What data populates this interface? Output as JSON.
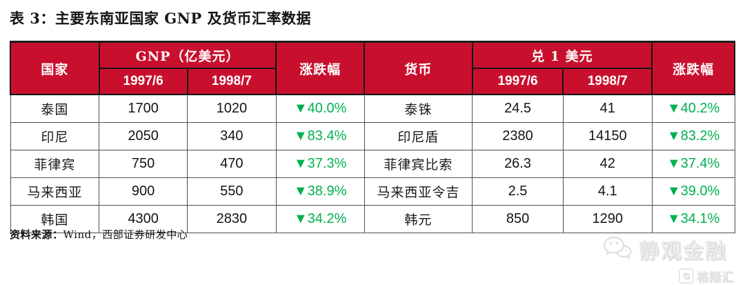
{
  "title": "表 3：主要东南亚国家 GNP 及货币汇率数据",
  "colors": {
    "header_red": "#c8102e",
    "change_green": "#00b050",
    "watermark_gray": "#e4e4e4"
  },
  "table": {
    "header": {
      "country": "国家",
      "gnp_group": "GNP（亿美元）",
      "change_left": "涨跌幅",
      "currency": "货币",
      "fx_group": "兑 1 美元",
      "change_right": "涨跌幅",
      "gnp_period1": "1997/6",
      "gnp_period2": "1998/7",
      "fx_period1": "1997/6",
      "fx_period2": "1998/7"
    },
    "rows": [
      {
        "country": "泰国",
        "gnp_1997": "1700",
        "gnp_1998": "1020",
        "gnp_change": "▼40.0%",
        "currency": "泰铢",
        "fx_1997": "24.5",
        "fx_1998": "41",
        "fx_change": "▼40.2%"
      },
      {
        "country": "印尼",
        "gnp_1997": "2050",
        "gnp_1998": "340",
        "gnp_change": "▼83.4%",
        "currency": "印尼盾",
        "fx_1997": "2380",
        "fx_1998": "14150",
        "fx_change": "▼83.2%"
      },
      {
        "country": "菲律宾",
        "gnp_1997": "750",
        "gnp_1998": "470",
        "gnp_change": "▼37.3%",
        "currency": "菲律宾比索",
        "fx_1997": "26.3",
        "fx_1998": "42",
        "fx_change": "▼37.4%"
      },
      {
        "country": "马来西亚",
        "gnp_1997": "900",
        "gnp_1998": "550",
        "gnp_change": "▼38.9%",
        "currency": "马来西亚令吉",
        "fx_1997": "2.5",
        "fx_1998": "4.1",
        "fx_change": "▼39.0%"
      },
      {
        "country": "韩国",
        "gnp_1997": "4300",
        "gnp_1998": "2830",
        "gnp_change": "▼34.2%",
        "currency": "韩元",
        "fx_1997": "850",
        "fx_1998": "1290",
        "fx_change": "▼34.1%"
      }
    ]
  },
  "source": {
    "label": "资料来源：",
    "text": "Wind，西部证券研发中心"
  },
  "watermark": {
    "brand": "静观金融",
    "brand_icon": "wechat-icon",
    "sub_icon_letter": "G",
    "sub": "格隆汇"
  }
}
